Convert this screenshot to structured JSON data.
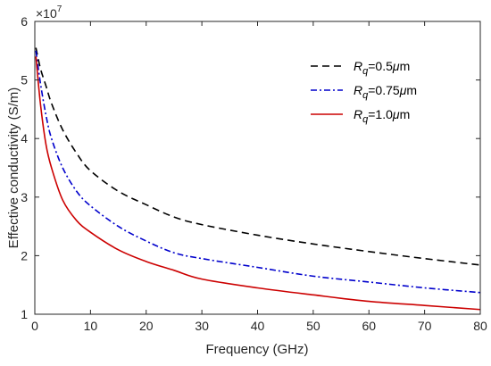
{
  "chart_data": {
    "type": "line",
    "xlabel": "Frequency (GHz)",
    "ylabel": "Effective conductivity (S/m)",
    "y_multiplier_label": "×10",
    "y_multiplier_exponent": "7",
    "xlim": [
      0,
      80
    ],
    "ylim": [
      1,
      6
    ],
    "x_ticks": [
      0,
      10,
      20,
      30,
      40,
      50,
      60,
      70,
      80
    ],
    "y_ticks": [
      1,
      2,
      3,
      4,
      5,
      6
    ],
    "x_tick_labels": [
      "0",
      "10",
      "20",
      "30",
      "40",
      "50",
      "60",
      "70",
      "80"
    ],
    "y_tick_labels": [
      "1",
      "2",
      "3",
      "4",
      "5",
      "6"
    ],
    "grid": false,
    "legend_position": "top-right",
    "x": [
      0.2,
      1,
      2,
      3,
      5,
      7.5,
      10,
      15,
      20,
      25,
      30,
      40,
      50,
      60,
      70,
      80
    ],
    "series": [
      {
        "name": "Rq=0.5μm",
        "legend_base": "R",
        "legend_sub": "q",
        "legend_rest": "=0.5",
        "legend_mu": "μ",
        "legend_unit": "m",
        "color": "#000000",
        "dash": "8,5",
        "values": [
          5.55,
          5.2,
          4.9,
          4.6,
          4.15,
          3.75,
          3.45,
          3.1,
          2.87,
          2.66,
          2.53,
          2.35,
          2.2,
          2.07,
          1.95,
          1.84
        ]
      },
      {
        "name": "Rq=0.75μm",
        "legend_base": "R",
        "legend_sub": "q",
        "legend_rest": "=0.75",
        "legend_mu": "μ",
        "legend_unit": "m",
        "color": "#0000cc",
        "dash": "7,3,2,3",
        "values": [
          5.5,
          4.95,
          4.4,
          4.0,
          3.5,
          3.1,
          2.85,
          2.5,
          2.25,
          2.05,
          1.95,
          1.8,
          1.65,
          1.55,
          1.45,
          1.37
        ]
      },
      {
        "name": "Rq=1.0μm",
        "legend_base": "R",
        "legend_sub": "q",
        "legend_rest": "=1.0",
        "legend_mu": "μ",
        "legend_unit": "m",
        "color": "#cc0000",
        "dash": "",
        "values": [
          5.4,
          4.6,
          3.9,
          3.5,
          2.95,
          2.6,
          2.4,
          2.1,
          1.9,
          1.75,
          1.6,
          1.45,
          1.33,
          1.22,
          1.15,
          1.08
        ]
      }
    ]
  }
}
